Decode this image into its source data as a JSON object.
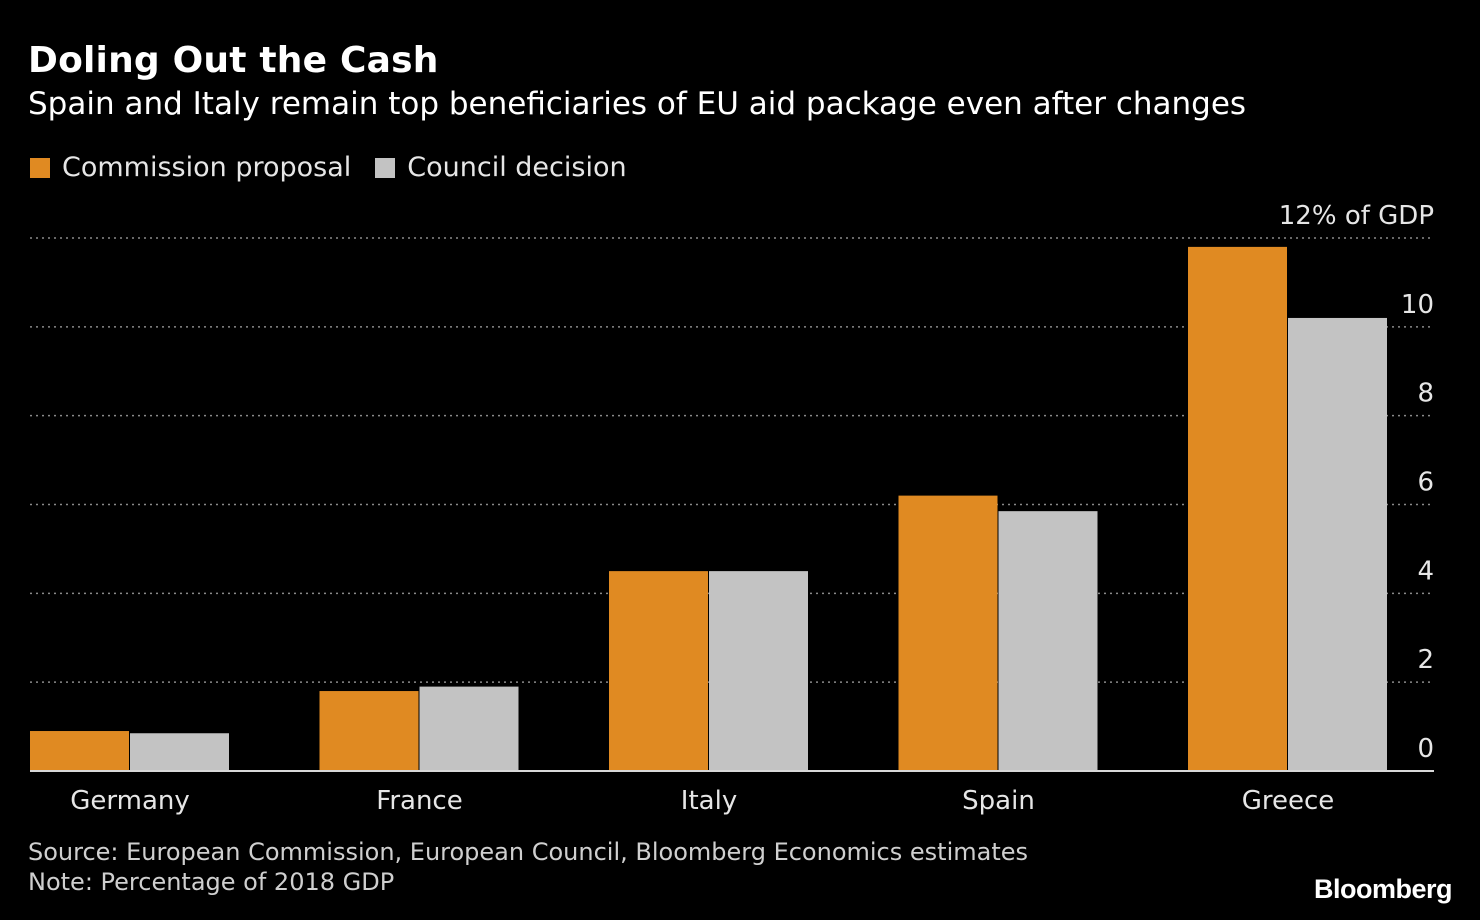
{
  "title": "Doling Out the Cash",
  "subtitle": "Spain and Italy remain top beneficiaries of EU aid package even after changes",
  "legend": {
    "items": [
      {
        "label": "Commission proposal",
        "color": "#e08a22"
      },
      {
        "label": "Council decision",
        "color": "#c3c3c3"
      }
    ]
  },
  "footer": {
    "source": "Source: European Commission, European Council, Bloomberg Economics estimates",
    "note": "Note: Percentage of 2018 GDP",
    "brand": "Bloomberg"
  },
  "chart_data": {
    "type": "bar",
    "categories": [
      "Germany",
      "France",
      "Italy",
      "Spain",
      "Greece"
    ],
    "series": [
      {
        "name": "Commission proposal",
        "values": [
          0.9,
          1.8,
          4.5,
          6.2,
          11.8
        ],
        "color": "#e08a22"
      },
      {
        "name": "Council decision",
        "values": [
          0.85,
          1.9,
          4.5,
          5.85,
          10.2
        ],
        "color": "#c3c3c3"
      }
    ],
    "y_ticks": [
      0,
      2,
      4,
      6,
      8,
      10,
      12
    ],
    "y_tick_labels": [
      "0",
      "2",
      "4",
      "6",
      "8",
      "10",
      "12% of GDP"
    ],
    "ylim": [
      0,
      12
    ],
    "grid": true,
    "grid_style": "dotted",
    "axis_position": "right"
  }
}
